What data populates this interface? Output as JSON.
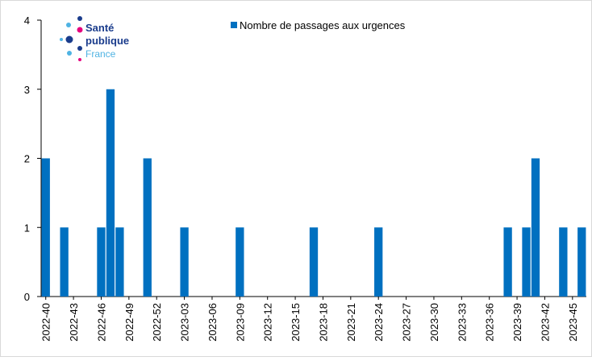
{
  "logo": {
    "line1": "Santé",
    "line2": "publique",
    "line3": "France"
  },
  "chart_data": {
    "type": "bar",
    "categories": [
      "2022-40",
      null,
      null,
      "2022-43",
      null,
      null,
      "2022-46",
      null,
      null,
      "2022-49",
      null,
      null,
      "2022-52",
      null,
      null,
      "2023-03",
      null,
      null,
      "2023-06",
      null,
      null,
      "2023-09",
      null,
      null,
      "2023-12",
      null,
      null,
      "2023-15",
      null,
      null,
      "2023-18",
      null,
      null,
      "2023-21",
      null,
      null,
      "2023-24",
      null,
      null,
      "2023-27",
      null,
      null,
      "2023-30",
      null,
      null,
      "2023-33",
      null,
      null,
      "2023-36",
      null,
      null,
      "2023-39",
      null,
      null,
      "2023-42",
      null,
      null,
      "2023-45",
      null
    ],
    "series": [
      {
        "name": "Nombre de passages aux urgences",
        "color": "#0070c0",
        "values": [
          2,
          0,
          1,
          0,
          0,
          0,
          1,
          3,
          1,
          0,
          0,
          2,
          0,
          0,
          0,
          1,
          0,
          0,
          0,
          0,
          0,
          1,
          0,
          0,
          0,
          0,
          0,
          0,
          0,
          1,
          0,
          0,
          0,
          0,
          0,
          0,
          1,
          0,
          0,
          0,
          0,
          0,
          0,
          0,
          0,
          0,
          0,
          0,
          0,
          0,
          1,
          0,
          1,
          2,
          0,
          0,
          1,
          0,
          1
        ]
      }
    ],
    "ylim": [
      0,
      4
    ],
    "yticks": [
      0,
      1,
      2,
      3,
      4
    ]
  }
}
